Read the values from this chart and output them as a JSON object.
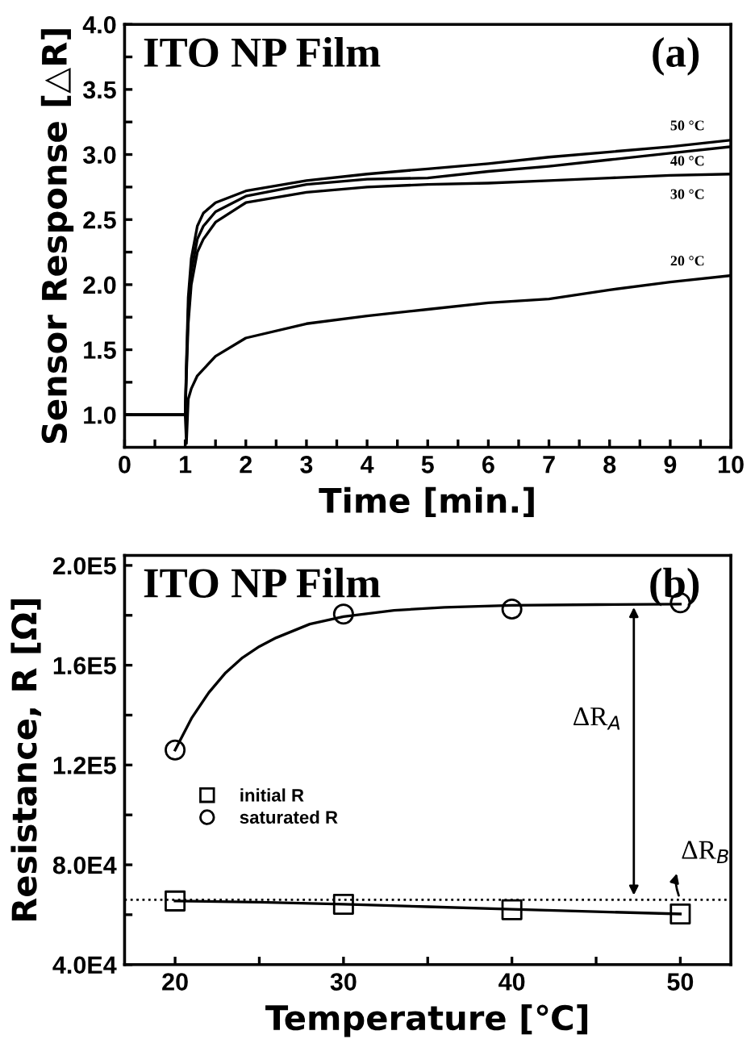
{
  "chart_data": [
    {
      "type": "line",
      "title": "ITO NP Film",
      "annotations": [
        "(a)"
      ],
      "xlabel": "Time [min.]",
      "ylabel": "Sensor Response [△R]",
      "xlim": [
        0,
        10
      ],
      "ylim": [
        0.75,
        4.0
      ],
      "xticks": [
        0,
        {
          "value": 0.5,
          "label": null
        },
        1,
        {
          "value": 1.5,
          "label": null
        },
        2,
        {
          "value": 2.5,
          "label": null
        },
        3,
        {
          "value": 3.5,
          "label": null
        },
        4,
        {
          "value": 4.5,
          "label": null
        },
        5,
        {
          "value": 5.5,
          "label": null
        },
        6,
        {
          "value": 6.5,
          "label": null
        },
        7,
        {
          "value": 7.5,
          "label": null
        },
        8,
        {
          "value": 8.5,
          "label": null
        },
        9,
        {
          "value": 9.5,
          "label": null
        },
        10
      ],
      "yticks": [
        {
          "value": 1.0,
          "label": "1.0"
        },
        {
          "value": 1.25,
          "label": null
        },
        1.5,
        {
          "value": 1.75,
          "label": null
        },
        {
          "value": 2.0,
          "label": "2.0"
        },
        {
          "value": 2.25,
          "label": null
        },
        2.5,
        {
          "value": 2.75,
          "label": null
        },
        {
          "value": 3.0,
          "label": "3.0"
        },
        {
          "value": 3.25,
          "label": null
        },
        3.5,
        {
          "value": 3.75,
          "label": null
        },
        {
          "value": 4.0,
          "label": "4.0"
        }
      ],
      "grid": false,
      "legend": false,
      "line_style": "solid",
      "series": [
        {
          "name": "50 °C",
          "color": "#000000",
          "x": [
            0,
            0.5,
            1.0,
            1.02,
            1.05,
            1.1,
            1.2,
            1.3,
            1.5,
            2,
            3,
            4,
            5,
            6,
            7,
            8,
            9,
            10
          ],
          "values": [
            1.0,
            1.0,
            1.0,
            1.4,
            1.9,
            2.2,
            2.45,
            2.55,
            2.63,
            2.72,
            2.8,
            2.85,
            2.89,
            2.93,
            2.98,
            3.02,
            3.06,
            3.11
          ]
        },
        {
          "name": "40 °C",
          "color": "#000000",
          "x": [
            0,
            0.5,
            1.0,
            1.02,
            1.05,
            1.1,
            1.2,
            1.3,
            1.5,
            2,
            3,
            4,
            5,
            6,
            7,
            8,
            9,
            10
          ],
          "values": [
            1.0,
            1.0,
            1.0,
            1.35,
            1.8,
            2.1,
            2.35,
            2.45,
            2.56,
            2.68,
            2.77,
            2.81,
            2.82,
            2.87,
            2.91,
            2.96,
            3.01,
            3.06
          ]
        },
        {
          "name": "30 °C",
          "color": "#000000",
          "x": [
            0,
            0.5,
            1.0,
            1.02,
            1.05,
            1.1,
            1.2,
            1.3,
            1.5,
            2,
            3,
            4,
            5,
            6,
            7,
            8,
            9,
            10
          ],
          "values": [
            1.0,
            1.0,
            1.0,
            1.3,
            1.7,
            2.0,
            2.25,
            2.35,
            2.48,
            2.63,
            2.71,
            2.75,
            2.77,
            2.78,
            2.8,
            2.82,
            2.84,
            2.85
          ]
        },
        {
          "name": "20 °C",
          "color": "#000000",
          "x": [
            0,
            0.5,
            1.0,
            1.02,
            1.05,
            1.1,
            1.2,
            1.5,
            2,
            3,
            4,
            5,
            6,
            7,
            8,
            9,
            10
          ],
          "values": [
            1.0,
            1.0,
            1.0,
            0.78,
            1.12,
            1.2,
            1.3,
            1.45,
            1.59,
            1.7,
            1.76,
            1.81,
            1.86,
            1.89,
            1.96,
            2.02,
            2.07
          ]
        }
      ]
    },
    {
      "type": "scatter",
      "title": "ITO NP Film",
      "xlabel": "Temperature [℃]",
      "ylabel": "Resistance, R [Ω]",
      "annotations": [
        "(b)",
        "ΔR$_{A}$",
        {
          "text": "ΔR$_{B}$",
          "x": 50,
          "y": 66000
        }
      ],
      "xlim": [
        17,
        53
      ],
      "ylim": [
        40000,
        204000
      ],
      "xticks": [
        20,
        {
          "value": 25,
          "label": null
        },
        30,
        {
          "value": 35,
          "label": null
        },
        40,
        {
          "value": 45,
          "label": null
        },
        50
      ],
      "yticks": [
        {
          "value": 40000,
          "label": "4.0E4"
        },
        {
          "value": 60000,
          "label": null
        },
        {
          "value": 80000,
          "label": "8.0E4"
        },
        {
          "value": 100000,
          "label": null
        },
        {
          "value": 120000,
          "label": "1.2E5"
        },
        {
          "value": 140000,
          "label": null
        },
        {
          "value": 160000,
          "label": "1.6E5"
        },
        {
          "value": 180000,
          "label": null
        },
        {
          "value": 200000,
          "label": "2.0E5"
        }
      ],
      "grid": false,
      "legend": "left",
      "ref_lines": [
        {
          "axis": "y",
          "value": 66000,
          "line_style": "dotted",
          "color": "#000000"
        }
      ],
      "series": [
        {
          "name": "initial R",
          "type": "scatter",
          "marker": "square",
          "color": "#000000",
          "x": [
            20,
            30,
            40,
            50
          ],
          "values": [
            65500,
            64200,
            62000,
            60300
          ]
        },
        {
          "name": "saturated R",
          "type": "scatter",
          "marker": "circle",
          "color": "#000000",
          "x": [
            20,
            30,
            40,
            50
          ],
          "values": [
            126000,
            180500,
            182500,
            185000
          ]
        },
        {
          "type": "line",
          "color": "#000000",
          "x": [
            20,
            25,
            30,
            35,
            40,
            45,
            50
          ],
          "values": [
            65500,
            65000,
            64200,
            63200,
            62200,
            61200,
            60300
          ]
        },
        {
          "type": "line",
          "color": "#000000",
          "x": [
            20,
            21,
            22,
            23,
            24,
            25,
            26,
            28,
            30,
            33,
            36,
            40,
            45,
            50
          ],
          "values": [
            126000,
            139000,
            149000,
            157000,
            163000,
            167500,
            171000,
            176500,
            179500,
            182000,
            183200,
            184000,
            184300,
            184500
          ]
        }
      ]
    }
  ]
}
